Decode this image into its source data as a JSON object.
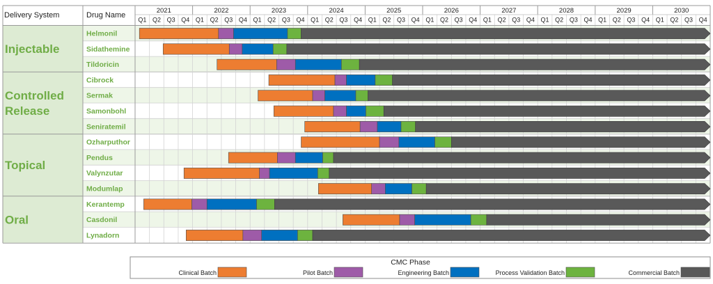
{
  "header": {
    "col1": "Delivery System",
    "col2": "Drug Name"
  },
  "years": [
    "2021",
    "2022",
    "2023",
    "2024",
    "2025",
    "2026",
    "2027",
    "2028",
    "2029",
    "2030"
  ],
  "quarters": [
    "Q1",
    "Q2",
    "Q3",
    "Q4"
  ],
  "groups": [
    {
      "name_lines": [
        "Injectable"
      ],
      "start": 0,
      "count": 3
    },
    {
      "name_lines": [
        "Controlled",
        "Release"
      ],
      "start": 3,
      "count": 4
    },
    {
      "name_lines": [
        "Topical"
      ],
      "start": 7,
      "count": 4
    },
    {
      "name_lines": [
        "Oral"
      ],
      "start": 11,
      "count": 3
    }
  ],
  "colors": {
    "clinical": "#ED7D31",
    "pilot": "#9E5BA8",
    "engineering": "#0070C0",
    "validation": "#6DB33F",
    "commercial": "#595959",
    "group_bg": "#DDEBD3",
    "label_green": "#70AD47",
    "row_shade": "#EEF6E8"
  },
  "legend": {
    "title": "CMC Phase",
    "items": [
      {
        "label": "Clinical Batch",
        "key": "clinical"
      },
      {
        "label": "Pilot Batch",
        "key": "pilot"
      },
      {
        "label": "Engineering Batch",
        "key": "engineering"
      },
      {
        "label": "Process Validation Batch",
        "key": "validation"
      },
      {
        "label": "Commercial Batch",
        "key": "commercial"
      }
    ]
  },
  "chart_data": {
    "type": "gantt",
    "x_unit": "quarter index (0 = 2021 Q1 start, 40 = end of 2030 Q4)",
    "x_range": [
      0,
      40
    ],
    "phases": [
      "clinical",
      "pilot",
      "engineering",
      "validation",
      "commercial"
    ],
    "rows": [
      {
        "drug": "Helmonil",
        "group": "Injectable",
        "segments": [
          0.3,
          5.8,
          6.85,
          10.6,
          11.55,
          40
        ]
      },
      {
        "drug": "Sidathemine",
        "group": "Injectable",
        "segments": [
          1.95,
          6.55,
          7.45,
          9.6,
          10.55,
          40
        ]
      },
      {
        "drug": "Tildoricin",
        "group": "Injectable",
        "segments": [
          5.7,
          9.85,
          11.15,
          14.35,
          15.6,
          40
        ]
      },
      {
        "drug": "Cibrock",
        "group": "Controlled Release",
        "segments": [
          9.3,
          13.9,
          14.7,
          16.7,
          17.9,
          40
        ]
      },
      {
        "drug": "Sermak",
        "group": "Controlled Release",
        "segments": [
          8.55,
          12.35,
          13.2,
          15.35,
          16.2,
          40
        ]
      },
      {
        "drug": "Samonbohl",
        "group": "Controlled Release",
        "segments": [
          9.65,
          13.8,
          14.7,
          16.05,
          17.3,
          40
        ]
      },
      {
        "drug": "Seniratemil",
        "group": "Controlled Release",
        "segments": [
          11.8,
          15.65,
          16.85,
          18.5,
          19.5,
          40
        ]
      },
      {
        "drug": "Ozharputhor",
        "group": "Topical",
        "segments": [
          11.55,
          17.0,
          18.35,
          20.85,
          22.0,
          40
        ]
      },
      {
        "drug": "Pendus",
        "group": "Topical",
        "segments": [
          6.5,
          9.9,
          11.15,
          13.05,
          13.8,
          40
        ]
      },
      {
        "drug": "Valynzutar",
        "group": "Topical",
        "segments": [
          3.4,
          8.65,
          9.35,
          12.7,
          13.5,
          40
        ]
      },
      {
        "drug": "Modumlap",
        "group": "Topical",
        "segments": [
          12.75,
          16.45,
          17.4,
          19.25,
          20.25,
          40
        ]
      },
      {
        "drug": "Kerantemp",
        "group": "Oral",
        "segments": [
          0.6,
          3.95,
          5.0,
          8.45,
          9.7,
          40
        ]
      },
      {
        "drug": "Casdonil",
        "group": "Oral",
        "segments": [
          14.45,
          18.4,
          19.45,
          23.35,
          24.45,
          40
        ]
      },
      {
        "drug": "Lynadorn",
        "group": "Oral",
        "segments": [
          3.55,
          7.5,
          8.8,
          11.3,
          12.35,
          40
        ]
      }
    ]
  }
}
